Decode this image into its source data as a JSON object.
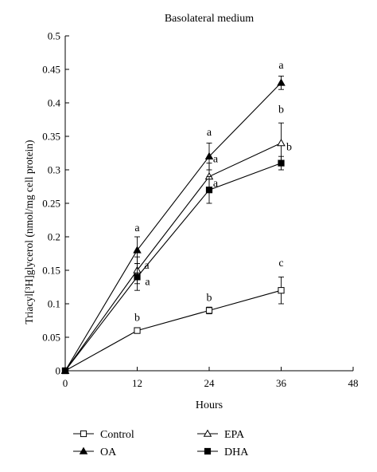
{
  "chart_data": {
    "type": "line",
    "title": "Basolateral medium",
    "xlabel": "Hours",
    "ylabel": "Triacyl[³H]glycerol (nmol/mg cell protein)",
    "xlim": [
      0,
      48
    ],
    "ylim": [
      0,
      0.5
    ],
    "x_ticks": [
      "0",
      "12",
      "24",
      "36",
      "48"
    ],
    "y_ticks": [
      "0",
      "0.05",
      "0.1",
      "0.15",
      "0.2",
      "0.25",
      "0.3",
      "0.35",
      "0.4",
      "0.45",
      "0.5"
    ],
    "grid": false,
    "legend_position": "bottom",
    "x": [
      0,
      12,
      24,
      36
    ],
    "series": [
      {
        "name": "Control",
        "marker": "open-square",
        "values": [
          0,
          0.06,
          0.09,
          0.12
        ],
        "error": [
          0,
          0.003,
          0.005,
          0.02
        ],
        "letters": [
          "",
          "b",
          "b",
          "c"
        ]
      },
      {
        "name": "OA",
        "marker": "filled-triangle",
        "values": [
          0,
          0.18,
          0.32,
          0.43
        ],
        "error": [
          0,
          0.02,
          0.02,
          0.01
        ],
        "letters": [
          "",
          "a",
          "a",
          "a"
        ]
      },
      {
        "name": "EPA",
        "marker": "open-triangle",
        "values": [
          0,
          0.15,
          0.29,
          0.34
        ],
        "error": [
          0,
          0.02,
          0.02,
          0.03
        ],
        "letters": [
          "",
          "a",
          "a",
          "b"
        ]
      },
      {
        "name": "DHA",
        "marker": "filled-square",
        "values": [
          0,
          0.14,
          0.27,
          0.31
        ],
        "error": [
          0,
          0.02,
          0.02,
          0.01
        ],
        "letters": [
          "",
          "a",
          "a",
          "b"
        ]
      }
    ],
    "legend_order": [
      "Control",
      "EPA",
      "OA",
      "DHA"
    ]
  }
}
